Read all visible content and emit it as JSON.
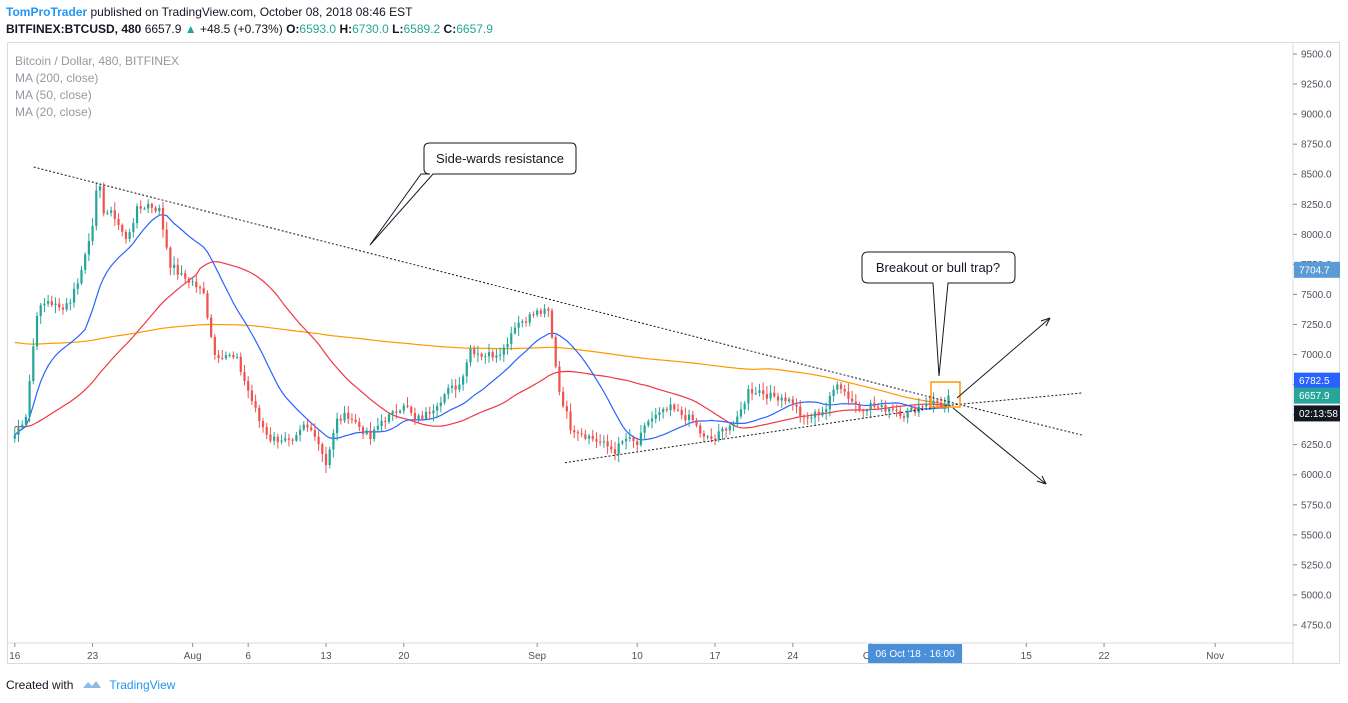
{
  "header": {
    "author": "TomProTrader",
    "published_text": " published on TradingView.com, October 08, 2018 08:46 EST",
    "symbol": "BITFINEX:BTCUSD, 480",
    "last": "6657.9",
    "change_arrow": "▲",
    "change": "+48.5 (+0.73%)",
    "open_label": "O:",
    "open": "6593.0",
    "high_label": "H:",
    "high": "6730.0",
    "low_label": "L:",
    "low": "6589.2",
    "close_label": "C:",
    "close": "6657.9"
  },
  "legend": {
    "title": "Bitcoin / Dollar, 480, BITFINEX",
    "ma200": "MA (200, close)",
    "ma50": "MA (50, close)",
    "ma20": "MA (20, close)"
  },
  "footer": {
    "created_with": "Created with",
    "brand": "TradingView"
  },
  "colors": {
    "up": "#26a69a",
    "down": "#ef5350",
    "ma20": "#2962ff",
    "ma50": "#f23645",
    "ma200": "#ff9800",
    "accent": "#2196f3",
    "time_badge": "#4a90d9"
  },
  "chart_data": {
    "type": "candlestick",
    "title": "Bitcoin / Dollar, 480, BITFINEX",
    "ylim": [
      4600,
      9600
    ],
    "y_ticks": [
      "9500.0",
      "9250.0",
      "9000.0",
      "8750.0",
      "8500.0",
      "8250.0",
      "8000.0",
      "7750.0",
      "7500.0",
      "7250.0",
      "7000.0",
      "6750.0",
      "6500.0",
      "6250.0",
      "6000.0",
      "5750.0",
      "5500.0",
      "5250.0",
      "5000.0",
      "4750.0"
    ],
    "x_ticks": [
      "16",
      "23",
      "Aug",
      "6",
      "13",
      "20",
      "Sep",
      "10",
      "17",
      "24",
      "Oct",
      "15",
      "22",
      "Nov"
    ],
    "x_tick_days": [
      0,
      7,
      16,
      21,
      28,
      35,
      47,
      56,
      63,
      70,
      77,
      91,
      98,
      108
    ],
    "x_range_days": [
      -0.7,
      115
    ],
    "last_day": 84.3,
    "anchors": [
      [
        0,
        6330
      ],
      [
        1,
        6500
      ],
      [
        2,
        7350
      ],
      [
        3,
        7450
      ],
      [
        4,
        7380
      ],
      [
        5,
        7450
      ],
      [
        6,
        7700
      ],
      [
        7,
        8100
      ],
      [
        7.5,
        8450
      ],
      [
        8,
        8200
      ],
      [
        9,
        8150
      ],
      [
        10,
        7950
      ],
      [
        11,
        8200
      ],
      [
        12,
        8250
      ],
      [
        13,
        8200
      ],
      [
        14,
        7750
      ],
      [
        15,
        7650
      ],
      [
        16,
        7600
      ],
      [
        17,
        7500
      ],
      [
        18,
        7000
      ],
      [
        19,
        7000
      ],
      [
        20,
        6950
      ],
      [
        21,
        6700
      ],
      [
        22,
        6450
      ],
      [
        23,
        6300
      ],
      [
        24,
        6300
      ],
      [
        25,
        6250
      ],
      [
        26,
        6400
      ],
      [
        27,
        6350
      ],
      [
        28,
        6100
      ],
      [
        29,
        6450
      ],
      [
        30,
        6500
      ],
      [
        31,
        6400
      ],
      [
        32,
        6300
      ],
      [
        33,
        6450
      ],
      [
        34,
        6500
      ],
      [
        35,
        6600
      ],
      [
        36,
        6450
      ],
      [
        37,
        6500
      ],
      [
        38,
        6600
      ],
      [
        39,
        6700
      ],
      [
        40,
        6750
      ],
      [
        41,
        7050
      ],
      [
        42,
        7000
      ],
      [
        43,
        7000
      ],
      [
        44,
        7050
      ],
      [
        45,
        7250
      ],
      [
        46,
        7300
      ],
      [
        47,
        7350
      ],
      [
        48,
        7350
      ],
      [
        49,
        6700
      ],
      [
        50,
        6400
      ],
      [
        51,
        6350
      ],
      [
        52,
        6300
      ],
      [
        53,
        6250
      ],
      [
        54,
        6200
      ],
      [
        55,
        6300
      ],
      [
        56,
        6250
      ],
      [
        57,
        6450
      ],
      [
        58,
        6500
      ],
      [
        59,
        6550
      ],
      [
        60,
        6500
      ],
      [
        61,
        6450
      ],
      [
        62,
        6300
      ],
      [
        63,
        6300
      ],
      [
        64,
        6400
      ],
      [
        65,
        6450
      ],
      [
        66,
        6700
      ],
      [
        67,
        6700
      ],
      [
        68,
        6650
      ],
      [
        69,
        6650
      ],
      [
        70,
        6600
      ],
      [
        71,
        6450
      ],
      [
        72,
        6500
      ],
      [
        73,
        6550
      ],
      [
        74,
        6780
      ],
      [
        75,
        6650
      ],
      [
        76,
        6550
      ],
      [
        77,
        6580
      ],
      [
        78,
        6550
      ],
      [
        79,
        6560
      ],
      [
        80,
        6500
      ],
      [
        81,
        6550
      ],
      [
        82,
        6600
      ],
      [
        83,
        6600
      ],
      [
        84,
        6560
      ],
      [
        84.3,
        6657.9
      ]
    ],
    "series": [
      {
        "name": "MA (20, close)",
        "role": "ma20"
      },
      {
        "name": "MA (50, close)",
        "role": "ma50"
      },
      {
        "name": "MA (200, close)",
        "role": "ma200"
      }
    ],
    "price_labels": [
      {
        "price": 7704.7,
        "text": "7704.7",
        "color": "#5b9bd5"
      },
      {
        "price": 6782.5,
        "text": "6782.5",
        "color": "#2962ff"
      },
      {
        "price": 6657.9,
        "text": "6657.9",
        "color": "#26a69a"
      },
      {
        "price": 6510,
        "text": "02:13:58",
        "color": "#131722"
      }
    ],
    "time_badge": "06 Oct '18 · 16:00",
    "time_badge_day": 81,
    "trendlines": [
      {
        "name": "upper-resistance",
        "from": [
          1.7,
          8560
        ],
        "to": [
          84.3,
          6600
        ],
        "ext": [
          84.3,
          6600,
          96,
          6330
        ]
      },
      {
        "name": "lower-support",
        "from": [
          49.5,
          6100
        ],
        "to": [
          84.3,
          6580
        ],
        "ext": [
          84.3,
          6580,
          96,
          6680
        ]
      }
    ],
    "annotations": [
      {
        "text": "Side-wards resistance"
      },
      {
        "text": "Breakout or bull trap?"
      }
    ]
  }
}
